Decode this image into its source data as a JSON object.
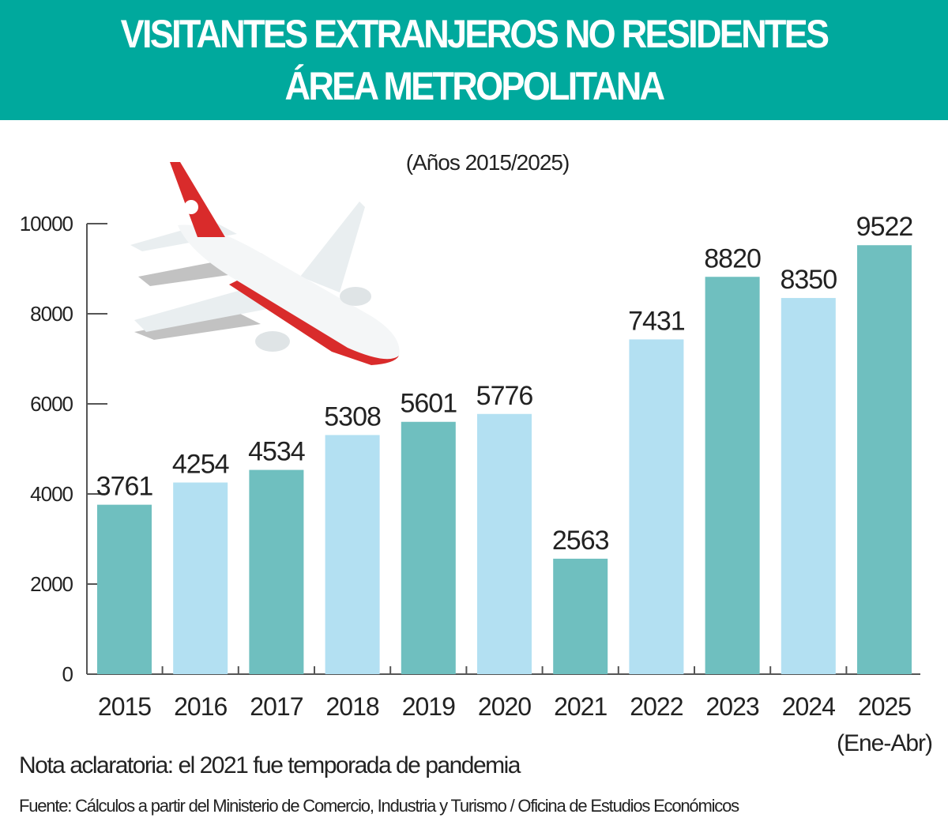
{
  "header": {
    "title_line1": "VISITANTES EXTRANJEROS NO RESIDENTES",
    "title_line2": "ÁREA METROPOLITANA",
    "background": "#00a99d"
  },
  "chart_data": {
    "type": "bar",
    "title": "VISITANTES EXTRANJEROS NO RESIDENTES ÁREA METROPOLITANA",
    "subtitle": "(Años 2015/2025)",
    "categories": [
      "2015",
      "2016",
      "2017",
      "2018",
      "2019",
      "2020",
      "2021",
      "2022",
      "2023",
      "2024",
      "2025"
    ],
    "category_sublabels": {
      "2025": "(Ene-Abr)"
    },
    "values": [
      3761,
      4254,
      4534,
      5308,
      5601,
      5776,
      2563,
      7431,
      8820,
      8350,
      9522
    ],
    "ylim": [
      0,
      10000
    ],
    "yticks": [
      0,
      2000,
      4000,
      6000,
      8000,
      10000
    ],
    "grid": false,
    "xlabel": "",
    "ylabel": "",
    "colors": [
      "#6fbfbf",
      "#b3e0f2"
    ]
  },
  "footer": {
    "note": "Nota aclaratoria: el 2021 fue temporada de pandemia",
    "source": "Fuente: Cálculos a partir del Ministerio de Comercio, Industria y Turismo / Oficina de Estudios Económicos"
  },
  "illustration": "airplane-red-white"
}
